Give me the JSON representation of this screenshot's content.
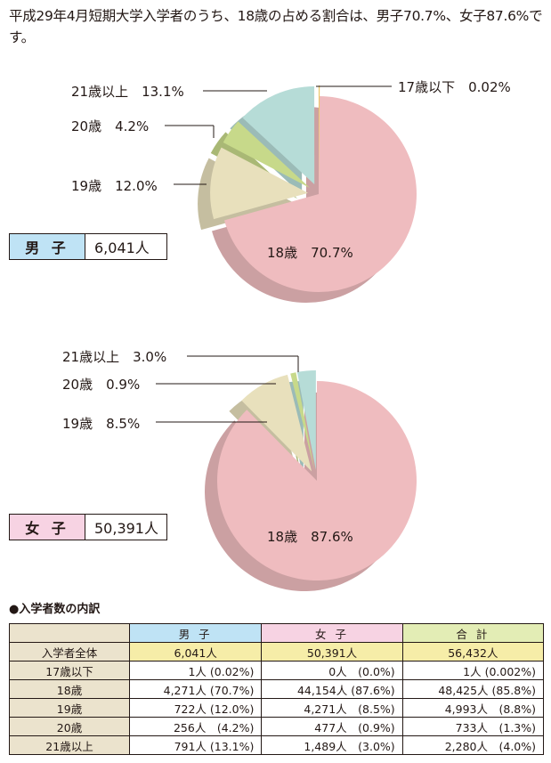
{
  "intro": "平成29年4月短期大学入学者のうち、18歳の占める割合は、男子70.7%、女子87.6%です。",
  "chart_data": [
    {
      "type": "pie",
      "legend": {
        "label": "男 子",
        "value": "6,041人",
        "color": "#bfe3f5"
      },
      "slices": [
        {
          "label": "18歳",
          "percent": 70.7,
          "color": "#efbcbf",
          "text": "18歳　70.7%"
        },
        {
          "label": "19歳",
          "percent": 12.0,
          "color": "#e8e0bc",
          "text": "19歳　12.0%"
        },
        {
          "label": "20歳",
          "percent": 4.2,
          "color": "#c7d98a",
          "text": "20歳　4.2%"
        },
        {
          "label": "21歳以上",
          "percent": 13.1,
          "color": "#b6dcd7",
          "text": "21歳以上　13.1%"
        },
        {
          "label": "17歳以下",
          "percent": 0.02,
          "color": "#ecc86a",
          "text": "17歳以下　0.02%"
        }
      ]
    },
    {
      "type": "pie",
      "legend": {
        "label": "女 子",
        "value": "50,391人",
        "color": "#f7d3e3"
      },
      "slices": [
        {
          "label": "18歳",
          "percent": 87.6,
          "color": "#efbcbf",
          "text": "18歳　87.6%"
        },
        {
          "label": "19歳",
          "percent": 8.5,
          "color": "#e8e0bc",
          "text": "19歳　8.5%"
        },
        {
          "label": "20歳",
          "percent": 0.9,
          "color": "#c7d98a",
          "text": "20歳　0.9%"
        },
        {
          "label": "21歳以上",
          "percent": 3.0,
          "color": "#b6dcd7",
          "text": "21歳以上　3.0%"
        }
      ]
    }
  ],
  "table": {
    "title": "●入学者数の内訳",
    "headers": [
      "男 子",
      "女 子",
      "合 計"
    ],
    "header_colors": [
      "#bfe3f5",
      "#f7d3e3",
      "#e3edb5"
    ],
    "rows": [
      {
        "label": "入学者全体",
        "cells": [
          "6,041人",
          "50,391人",
          "56,432人"
        ]
      },
      {
        "label": "17歳以下",
        "cells": [
          "1人 (0.02%)",
          "0人　(0.0%)",
          "1人 (0.002%)"
        ]
      },
      {
        "label": "18歳",
        "cells": [
          "4,271人 (70.7%)",
          "44,154人 (87.6%)",
          "48,425人 (85.8%)"
        ]
      },
      {
        "label": "19歳",
        "cells": [
          "722人 (12.0%)",
          "4,271人　(8.5%)",
          "4,993人　(8.8%)"
        ]
      },
      {
        "label": "20歳",
        "cells": [
          "256人　(4.2%)",
          "477人　(0.9%)",
          "733人　(1.3%)"
        ]
      },
      {
        "label": "21歳以上",
        "cells": [
          "791人 (13.1%)",
          "1,489人　(3.0%)",
          "2,280人　(4.0%)"
        ]
      }
    ]
  }
}
